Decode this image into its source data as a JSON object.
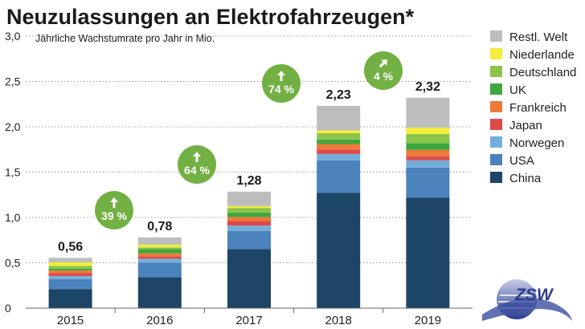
{
  "chart_data": {
    "type": "bar",
    "stacked": true,
    "title": "Neuzulassungen an Elektrofahrzeugen*",
    "subtitle": "Jährliche Wachstumrate pro Jahr in Mio.",
    "xlabel": "",
    "ylabel": "",
    "ylim": [
      0,
      3.0
    ],
    "yticks": [
      "0",
      "0,5",
      "1,0",
      "1,5",
      "2,0",
      "2,5",
      "3,0"
    ],
    "grid": true,
    "legend_position": "right",
    "categories": [
      "2015",
      "2016",
      "2017",
      "2018",
      "2019"
    ],
    "totals": [
      "0,56",
      "0,78",
      "1,28",
      "2,23",
      "2,32"
    ],
    "growth_rates": [
      {
        "label": "39 %",
        "between": [
          "2015",
          "2016"
        ],
        "arrow": "up"
      },
      {
        "label": "64 %",
        "between": [
          "2016",
          "2017"
        ],
        "arrow": "up"
      },
      {
        "label": "74 %",
        "between": [
          "2017",
          "2018"
        ],
        "arrow": "up"
      },
      {
        "label": "4 %",
        "between": [
          "2018",
          "2019"
        ],
        "arrow": "up-right"
      }
    ],
    "series": [
      {
        "name": "China",
        "color": "#1d4566",
        "values": [
          0.21,
          0.34,
          0.65,
          1.27,
          1.22
        ]
      },
      {
        "name": "USA",
        "color": "#4a82bb",
        "values": [
          0.11,
          0.16,
          0.2,
          0.36,
          0.33
        ]
      },
      {
        "name": "Norwegen",
        "color": "#74aedd",
        "values": [
          0.035,
          0.045,
          0.06,
          0.07,
          0.08
        ]
      },
      {
        "name": "Japan",
        "color": "#dc4a4a",
        "values": [
          0.03,
          0.025,
          0.05,
          0.05,
          0.045
        ]
      },
      {
        "name": "Frankreich",
        "color": "#ee7a3a",
        "values": [
          0.03,
          0.035,
          0.045,
          0.06,
          0.07
        ]
      },
      {
        "name": "UK",
        "color": "#3fa73f",
        "values": [
          0.02,
          0.045,
          0.05,
          0.05,
          0.075
        ]
      },
      {
        "name": "Deutschland",
        "color": "#8cc44a",
        "values": [
          0.03,
          0.02,
          0.05,
          0.07,
          0.1
        ]
      },
      {
        "name": "Niederlande",
        "color": "#f4ec3a",
        "values": [
          0.04,
          0.03,
          0.02,
          0.03,
          0.07
        ]
      },
      {
        "name": "Restl. Welt",
        "color": "#bdbdbd",
        "values": [
          0.05,
          0.08,
          0.16,
          0.27,
          0.33
        ]
      }
    ],
    "bubble_color": "#72b043"
  },
  "logo": {
    "text": "ZSW"
  }
}
